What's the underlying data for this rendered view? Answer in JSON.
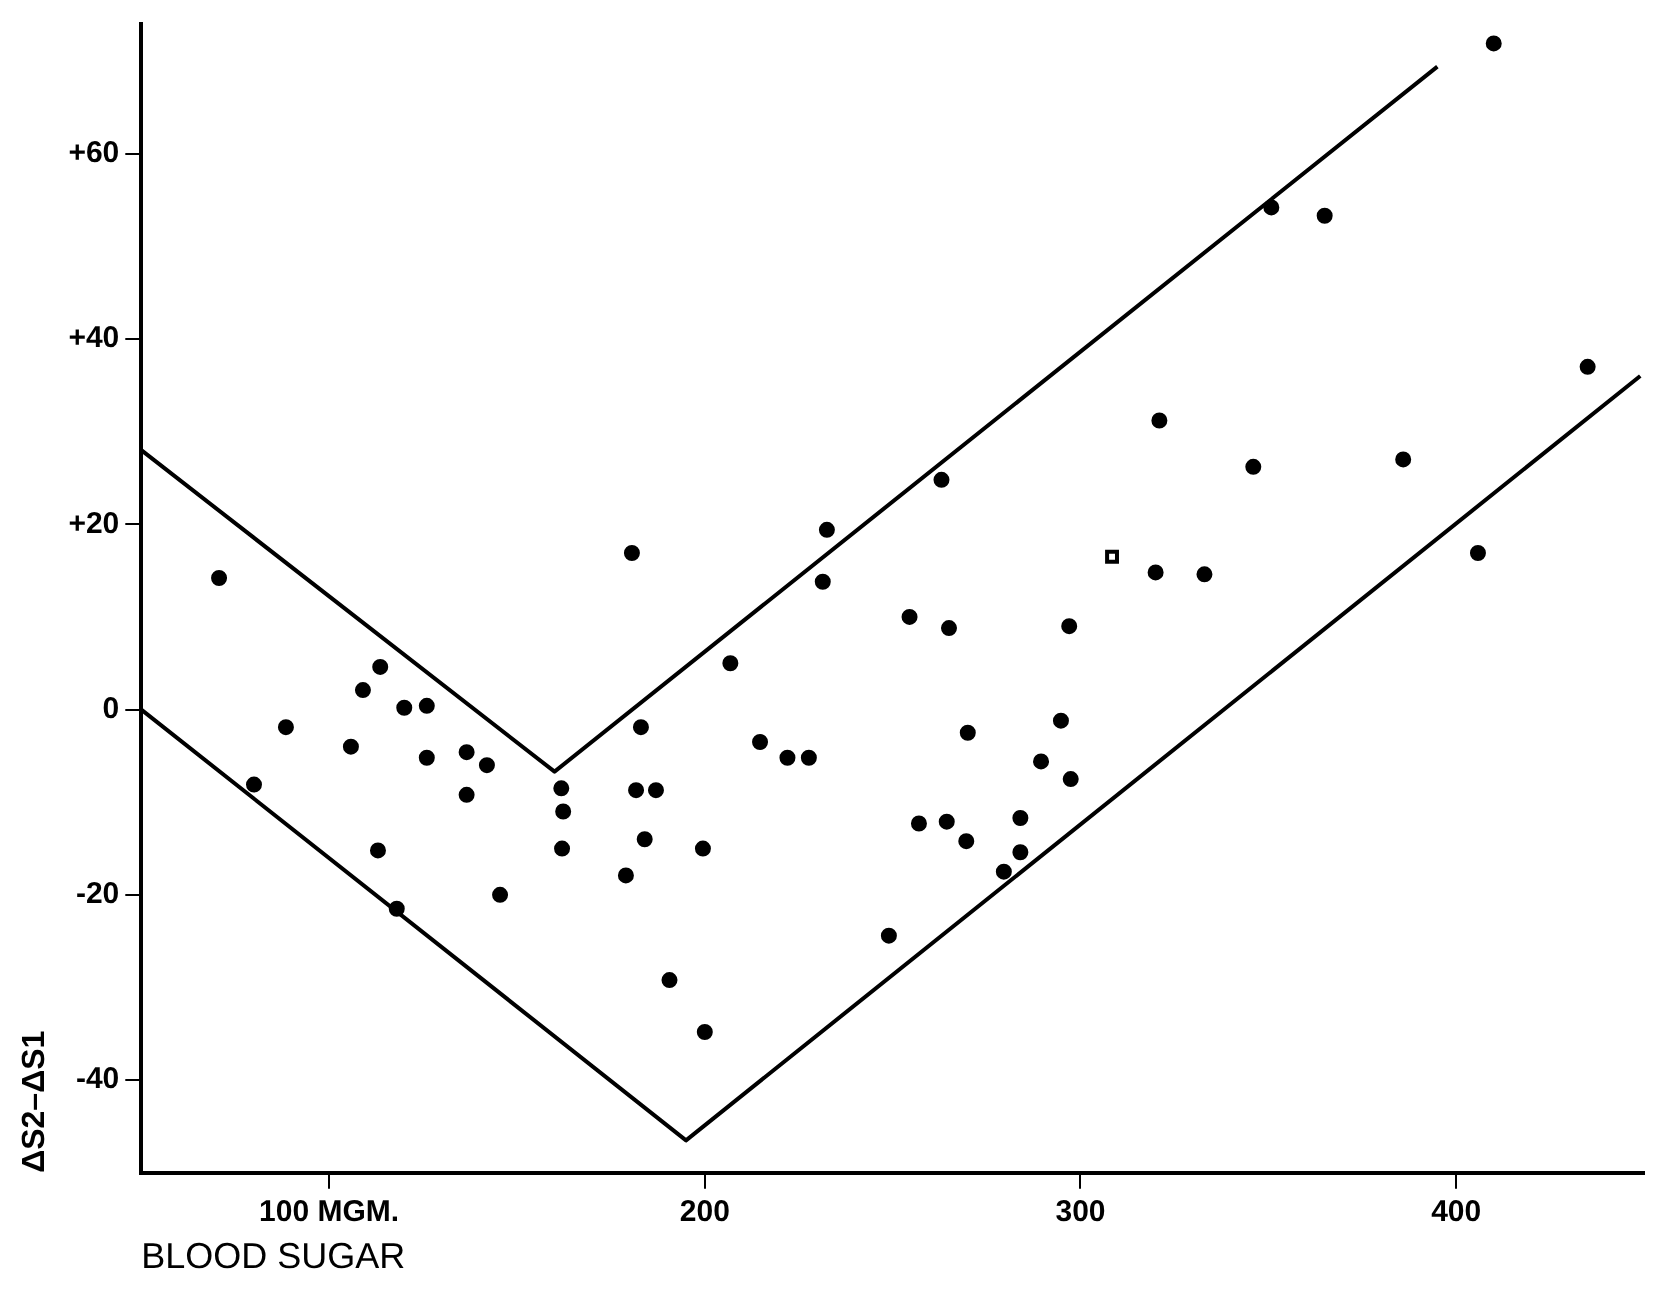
{
  "chart_data": {
    "type": "scatter",
    "xlabel": "BLOOD SUGAR",
    "ylabel": "ΔS2–ΔS1",
    "xlim": [
      50,
      450
    ],
    "ylim": [
      -50,
      74
    ],
    "xticks": [
      {
        "value": 100,
        "label": "100 MGM."
      },
      200,
      300,
      400
    ],
    "yticks": [
      {
        "value": -40,
        "label": "-40"
      },
      {
        "value": -20,
        "label": "-20"
      },
      0,
      {
        "value": 20,
        "label": "+20"
      },
      {
        "value": 40,
        "label": "+40"
      },
      {
        "value": 60,
        "label": "+60"
      }
    ],
    "grid": false,
    "legend": false,
    "series": [
      {
        "type": "scatter",
        "marker": "circle",
        "color": "#000000",
        "x": [
          70.7,
          80,
          88.5,
          105.8,
          109,
          113.6,
          113,
          120,
          126,
          126,
          136.6,
          136.6,
          142,
          145.5,
          118,
          161.8,
          162.3,
          162,
          180.6,
          183,
          181.7,
          187,
          184,
          179,
          190.6,
          200,
          199.5,
          206.8,
          214.7,
          222,
          227.7,
          232.5,
          231.4,
          254.5,
          263,
          265,
          297,
          320,
          321,
          270,
          294.8,
          289.5,
          297.4,
          257,
          264.4,
          269.6,
          284,
          284,
          279.6,
          249,
          410,
          350.8,
          365,
          346,
          385.9,
          435,
          405.8,
          333
        ],
        "values": [
          14.2,
          -8.1,
          -1.9,
          -4,
          2.1,
          4.6,
          -15.2,
          0.2,
          0.4,
          -5.2,
          -4.6,
          -9.2,
          -6,
          -20,
          -21.5,
          -8.5,
          -11,
          -15,
          16.9,
          -1.9,
          -8.7,
          -8.7,
          -14,
          -17.9,
          -29.2,
          -34.8,
          -15,
          5,
          -3.5,
          -5.2,
          -5.2,
          19.4,
          13.8,
          10,
          24.8,
          8.8,
          9,
          14.8,
          31.2,
          -2.5,
          -1.2,
          -5.6,
          -7.5,
          -12.3,
          -12.1,
          -14.2,
          -11.7,
          -15.4,
          -17.5,
          -24.4,
          71.9,
          54.2,
          53.3,
          26.2,
          27,
          37,
          16.9,
          14.6
        ]
      },
      {
        "type": "scatter",
        "marker": "square",
        "color": "#000000",
        "x": [
          308.4
        ],
        "values": [
          16.5
        ]
      },
      {
        "type": "line",
        "marker": "none",
        "color": "#000000",
        "x": [
          50,
          160,
          395
        ],
        "values": [
          28,
          -6.7,
          69.4
        ]
      },
      {
        "type": "line",
        "marker": "none",
        "color": "#000000",
        "x": [
          50,
          195,
          449
        ],
        "values": [
          0,
          -46.5,
          36
        ]
      }
    ]
  }
}
